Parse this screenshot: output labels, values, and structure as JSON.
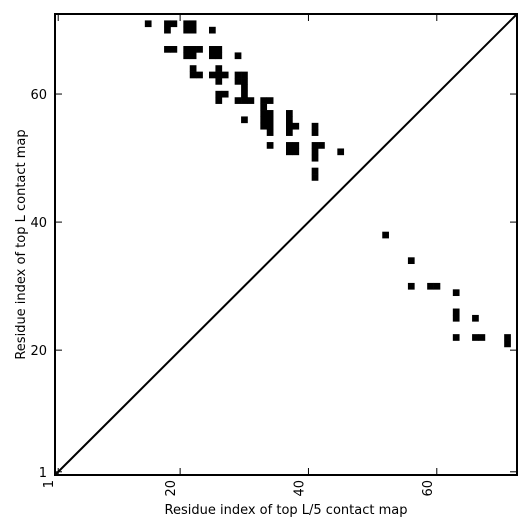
{
  "chart_data": {
    "type": "heatmap",
    "xlabel": "Residue index of top L/5 contact map",
    "ylabel": "Residue index of top L contact map",
    "xlim": [
      0.5,
      72.5
    ],
    "ylim": [
      0.5,
      72.5
    ],
    "x_ticks": [
      1,
      20,
      40,
      60
    ],
    "y_ticks": [
      1,
      20,
      40,
      60
    ],
    "x_tick_labels": [
      "1",
      "20",
      "40",
      "60"
    ],
    "y_tick_labels": [
      "1",
      "20",
      "40",
      "60"
    ],
    "x_tick_rotation": 270,
    "diagonal": true,
    "grid": false,
    "cell_color": "#000000",
    "upper_contacts": [
      [
        15,
        71
      ],
      [
        18,
        71
      ],
      [
        19,
        71
      ],
      [
        18,
        70
      ],
      [
        21,
        71
      ],
      [
        22,
        71
      ],
      [
        21,
        70
      ],
      [
        22,
        70
      ],
      [
        25,
        70
      ],
      [
        18,
        67
      ],
      [
        19,
        67
      ],
      [
        21,
        67
      ],
      [
        22,
        67
      ],
      [
        23,
        67
      ],
      [
        25,
        67
      ],
      [
        26,
        67
      ],
      [
        21,
        66
      ],
      [
        22,
        66
      ],
      [
        25,
        66
      ],
      [
        26,
        66
      ],
      [
        29,
        66
      ],
      [
        22,
        64
      ],
      [
        26,
        64
      ],
      [
        22,
        63
      ],
      [
        23,
        63
      ],
      [
        25,
        63
      ],
      [
        26,
        63
      ],
      [
        27,
        63
      ],
      [
        29,
        63
      ],
      [
        30,
        63
      ],
      [
        26,
        62
      ],
      [
        29,
        62
      ],
      [
        30,
        62
      ],
      [
        30,
        61
      ],
      [
        26,
        60
      ],
      [
        27,
        60
      ],
      [
        30,
        60
      ],
      [
        26,
        59
      ],
      [
        29,
        59
      ],
      [
        30,
        59
      ],
      [
        31,
        59
      ],
      [
        33,
        59
      ],
      [
        34,
        59
      ],
      [
        33,
        58
      ],
      [
        33,
        57
      ],
      [
        34,
        57
      ],
      [
        37,
        57
      ],
      [
        33,
        56
      ],
      [
        34,
        56
      ],
      [
        37,
        56
      ],
      [
        30,
        56
      ],
      [
        33,
        55
      ],
      [
        34,
        55
      ],
      [
        37,
        55
      ],
      [
        38,
        55
      ],
      [
        41,
        55
      ],
      [
        34,
        54
      ],
      [
        37,
        54
      ],
      [
        41,
        54
      ],
      [
        34,
        52
      ],
      [
        37,
        52
      ],
      [
        38,
        52
      ],
      [
        41,
        52
      ],
      [
        42,
        52
      ],
      [
        37,
        51
      ],
      [
        38,
        51
      ],
      [
        41,
        51
      ],
      [
        45,
        51
      ],
      [
        41,
        50
      ],
      [
        41,
        48
      ],
      [
        41,
        47
      ]
    ],
    "lower_contacts": [
      [
        52,
        38
      ],
      [
        56,
        34
      ],
      [
        56,
        30
      ],
      [
        59,
        30
      ],
      [
        60,
        30
      ],
      [
        63,
        29
      ],
      [
        63,
        26
      ],
      [
        63,
        25
      ],
      [
        66,
        25
      ],
      [
        63,
        22
      ],
      [
        66,
        22
      ],
      [
        67,
        22
      ],
      [
        71,
        22
      ],
      [
        71,
        21
      ]
    ]
  }
}
